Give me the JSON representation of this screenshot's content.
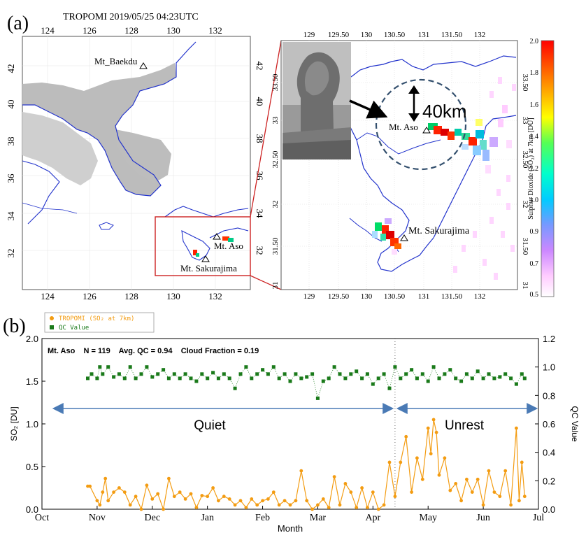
{
  "panel_a": {
    "label": "(a)",
    "title": "TROPOMI 2019/05/25 04:23UTC",
    "left_map": {
      "x_ticks": [
        "124",
        "126",
        "128",
        "130",
        "132"
      ],
      "y_ticks": [
        "42",
        "40",
        "38",
        "36",
        "34",
        "32"
      ],
      "places": [
        {
          "name": "Mt_Baekdu"
        },
        {
          "name": "Mt. Aso"
        },
        {
          "name": "Mt. Sakurajima"
        }
      ]
    },
    "zoom_map": {
      "x_ticks": [
        "129",
        "129.50",
        "130",
        "130.50",
        "131",
        "131.50",
        "132"
      ],
      "y_ticks": [
        "33.50",
        "33",
        "32.50",
        "32",
        "31.50",
        "31"
      ],
      "distance_label": "40km",
      "places": [
        {
          "name": "Mt. Aso"
        },
        {
          "name": "Mt. Sakurajima"
        }
      ]
    },
    "colorbar": {
      "label": "Sulphur Dioxide (SO₂) at 7km [DU]",
      "ticks": [
        "2.0",
        "1.8",
        "1.6",
        "1.4",
        "1.2",
        "1.0",
        "0.9",
        "0.7",
        "0.5"
      ],
      "colors": [
        "#ff0000",
        "#ff8800",
        "#ffff00",
        "#00ff00",
        "#00ffff",
        "#0088ff",
        "#8080ff",
        "#ff80ff",
        "#ffffff"
      ]
    }
  },
  "panel_b": {
    "label": "(b)",
    "annotation": "Mt. Aso    N = 119    Avg. QC = 0.94    Cloud Fraction = 0.19",
    "legend": [
      {
        "name": "TROPOMI (SO₂ at 7km)",
        "color": "#f39c12"
      },
      {
        "name": "QC Value",
        "color": "#1a7a1a"
      }
    ],
    "phases": [
      {
        "label": "Quiet"
      },
      {
        "label": "Unrest"
      }
    ],
    "arrow_color": "#4a7ab5"
  },
  "chart_data": {
    "type": "line",
    "xlabel": "Month",
    "ylabel": "SO₂ [DU]",
    "ylabel_right": "QC Value",
    "x_categories": [
      "Oct",
      "Nov",
      "Dec",
      "Jan",
      "Feb",
      "Mar",
      "Apr",
      "May",
      "Jun",
      "Jul"
    ],
    "xlim": [
      0,
      9
    ],
    "ylim": [
      0,
      2.0
    ],
    "ylim_right": [
      0,
      1.2
    ],
    "y_ticks": [
      0.0,
      0.5,
      1.0,
      1.5,
      2.0
    ],
    "y_ticks_right": [
      0.0,
      0.2,
      0.4,
      0.6,
      0.8,
      1.0,
      1.2
    ],
    "boundary_month_index": 6.4,
    "series": [
      {
        "name": "TROPOMI (SO₂ at 7km)",
        "color": "#f39c12",
        "x": [
          0.83,
          0.87,
          1.0,
          1.05,
          1.1,
          1.15,
          1.2,
          1.3,
          1.4,
          1.5,
          1.6,
          1.7,
          1.8,
          1.9,
          2.0,
          2.1,
          2.2,
          2.3,
          2.4,
          2.5,
          2.6,
          2.7,
          2.8,
          2.9,
          3.0,
          3.1,
          3.2,
          3.3,
          3.4,
          3.5,
          3.6,
          3.7,
          3.8,
          3.9,
          4.0,
          4.1,
          4.2,
          4.3,
          4.4,
          4.5,
          4.6,
          4.7,
          4.8,
          4.9,
          5.0,
          5.1,
          5.2,
          5.3,
          5.4,
          5.5,
          5.6,
          5.7,
          5.8,
          5.9,
          6.0,
          6.1,
          6.2,
          6.3,
          6.4,
          6.5,
          6.6,
          6.7,
          6.8,
          6.9,
          7.0,
          7.05,
          7.1,
          7.15,
          7.2,
          7.3,
          7.4,
          7.5,
          7.6,
          7.7,
          7.8,
          7.9,
          8.0,
          8.1,
          8.2,
          8.3,
          8.4,
          8.5,
          8.6,
          8.65,
          8.7,
          8.75
        ],
        "y": [
          0.27,
          0.27,
          0.1,
          0.05,
          0.2,
          0.36,
          0.1,
          0.2,
          0.25,
          0.2,
          0.05,
          0.15,
          0.0,
          0.28,
          0.12,
          0.18,
          0.0,
          0.36,
          0.15,
          0.2,
          0.12,
          0.18,
          0.02,
          0.16,
          0.15,
          0.25,
          0.1,
          0.15,
          0.12,
          0.05,
          0.1,
          0.02,
          0.12,
          0.05,
          0.1,
          0.12,
          0.2,
          0.05,
          0.1,
          0.05,
          0.1,
          0.45,
          0.1,
          0.0,
          0.05,
          0.12,
          0.02,
          0.38,
          0.05,
          0.3,
          0.2,
          0.02,
          0.25,
          0.02,
          0.2,
          0.0,
          0.05,
          0.55,
          0.15,
          0.55,
          0.85,
          0.2,
          0.6,
          0.35,
          0.95,
          0.65,
          1.05,
          0.9,
          0.4,
          0.6,
          0.22,
          0.3,
          0.1,
          0.35,
          0.2,
          0.35,
          0.05,
          0.45,
          0.2,
          0.15,
          0.45,
          0.05,
          0.95,
          0.1,
          0.55,
          0.15
        ]
      },
      {
        "name": "QC Value",
        "color": "#1a7a1a",
        "x": [
          0.83,
          0.9,
          1.0,
          1.05,
          1.1,
          1.2,
          1.3,
          1.4,
          1.5,
          1.6,
          1.7,
          1.8,
          1.9,
          2.0,
          2.1,
          2.2,
          2.3,
          2.4,
          2.5,
          2.6,
          2.7,
          2.8,
          2.9,
          3.0,
          3.1,
          3.2,
          3.3,
          3.4,
          3.5,
          3.6,
          3.7,
          3.8,
          3.9,
          4.0,
          4.1,
          4.2,
          4.3,
          4.4,
          4.5,
          4.6,
          4.7,
          4.8,
          4.9,
          5.0,
          5.1,
          5.2,
          5.3,
          5.4,
          5.5,
          5.6,
          5.7,
          5.8,
          5.9,
          6.0,
          6.1,
          6.2,
          6.3,
          6.4,
          6.5,
          6.6,
          6.7,
          6.8,
          6.9,
          7.0,
          7.1,
          7.2,
          7.3,
          7.4,
          7.5,
          7.6,
          7.7,
          7.8,
          7.9,
          8.0,
          8.1,
          8.2,
          8.3,
          8.4,
          8.5,
          8.6,
          8.7,
          8.75
        ],
        "y": [
          0.92,
          0.95,
          0.92,
          1.0,
          0.95,
          1.0,
          0.93,
          0.95,
          0.92,
          1.0,
          0.92,
          0.95,
          1.0,
          0.93,
          0.95,
          0.98,
          0.92,
          0.95,
          0.92,
          0.95,
          0.92,
          0.9,
          0.95,
          0.92,
          0.96,
          0.92,
          0.95,
          0.92,
          0.85,
          0.95,
          1.0,
          0.92,
          0.95,
          0.98,
          0.95,
          1.0,
          0.92,
          0.95,
          0.9,
          0.95,
          0.92,
          0.93,
          0.95,
          0.78,
          0.9,
          0.92,
          1.0,
          0.95,
          0.92,
          0.95,
          0.97,
          0.92,
          0.95,
          0.88,
          0.92,
          0.95,
          0.85,
          1.0,
          0.92,
          0.95,
          0.98,
          0.92,
          0.95,
          0.9,
          1.0,
          0.92,
          0.95,
          0.98,
          0.92,
          0.9,
          0.95,
          0.92,
          0.97,
          0.92,
          0.95,
          0.92,
          0.93,
          0.95,
          0.92,
          0.88,
          0.95,
          0.92
        ]
      }
    ]
  }
}
